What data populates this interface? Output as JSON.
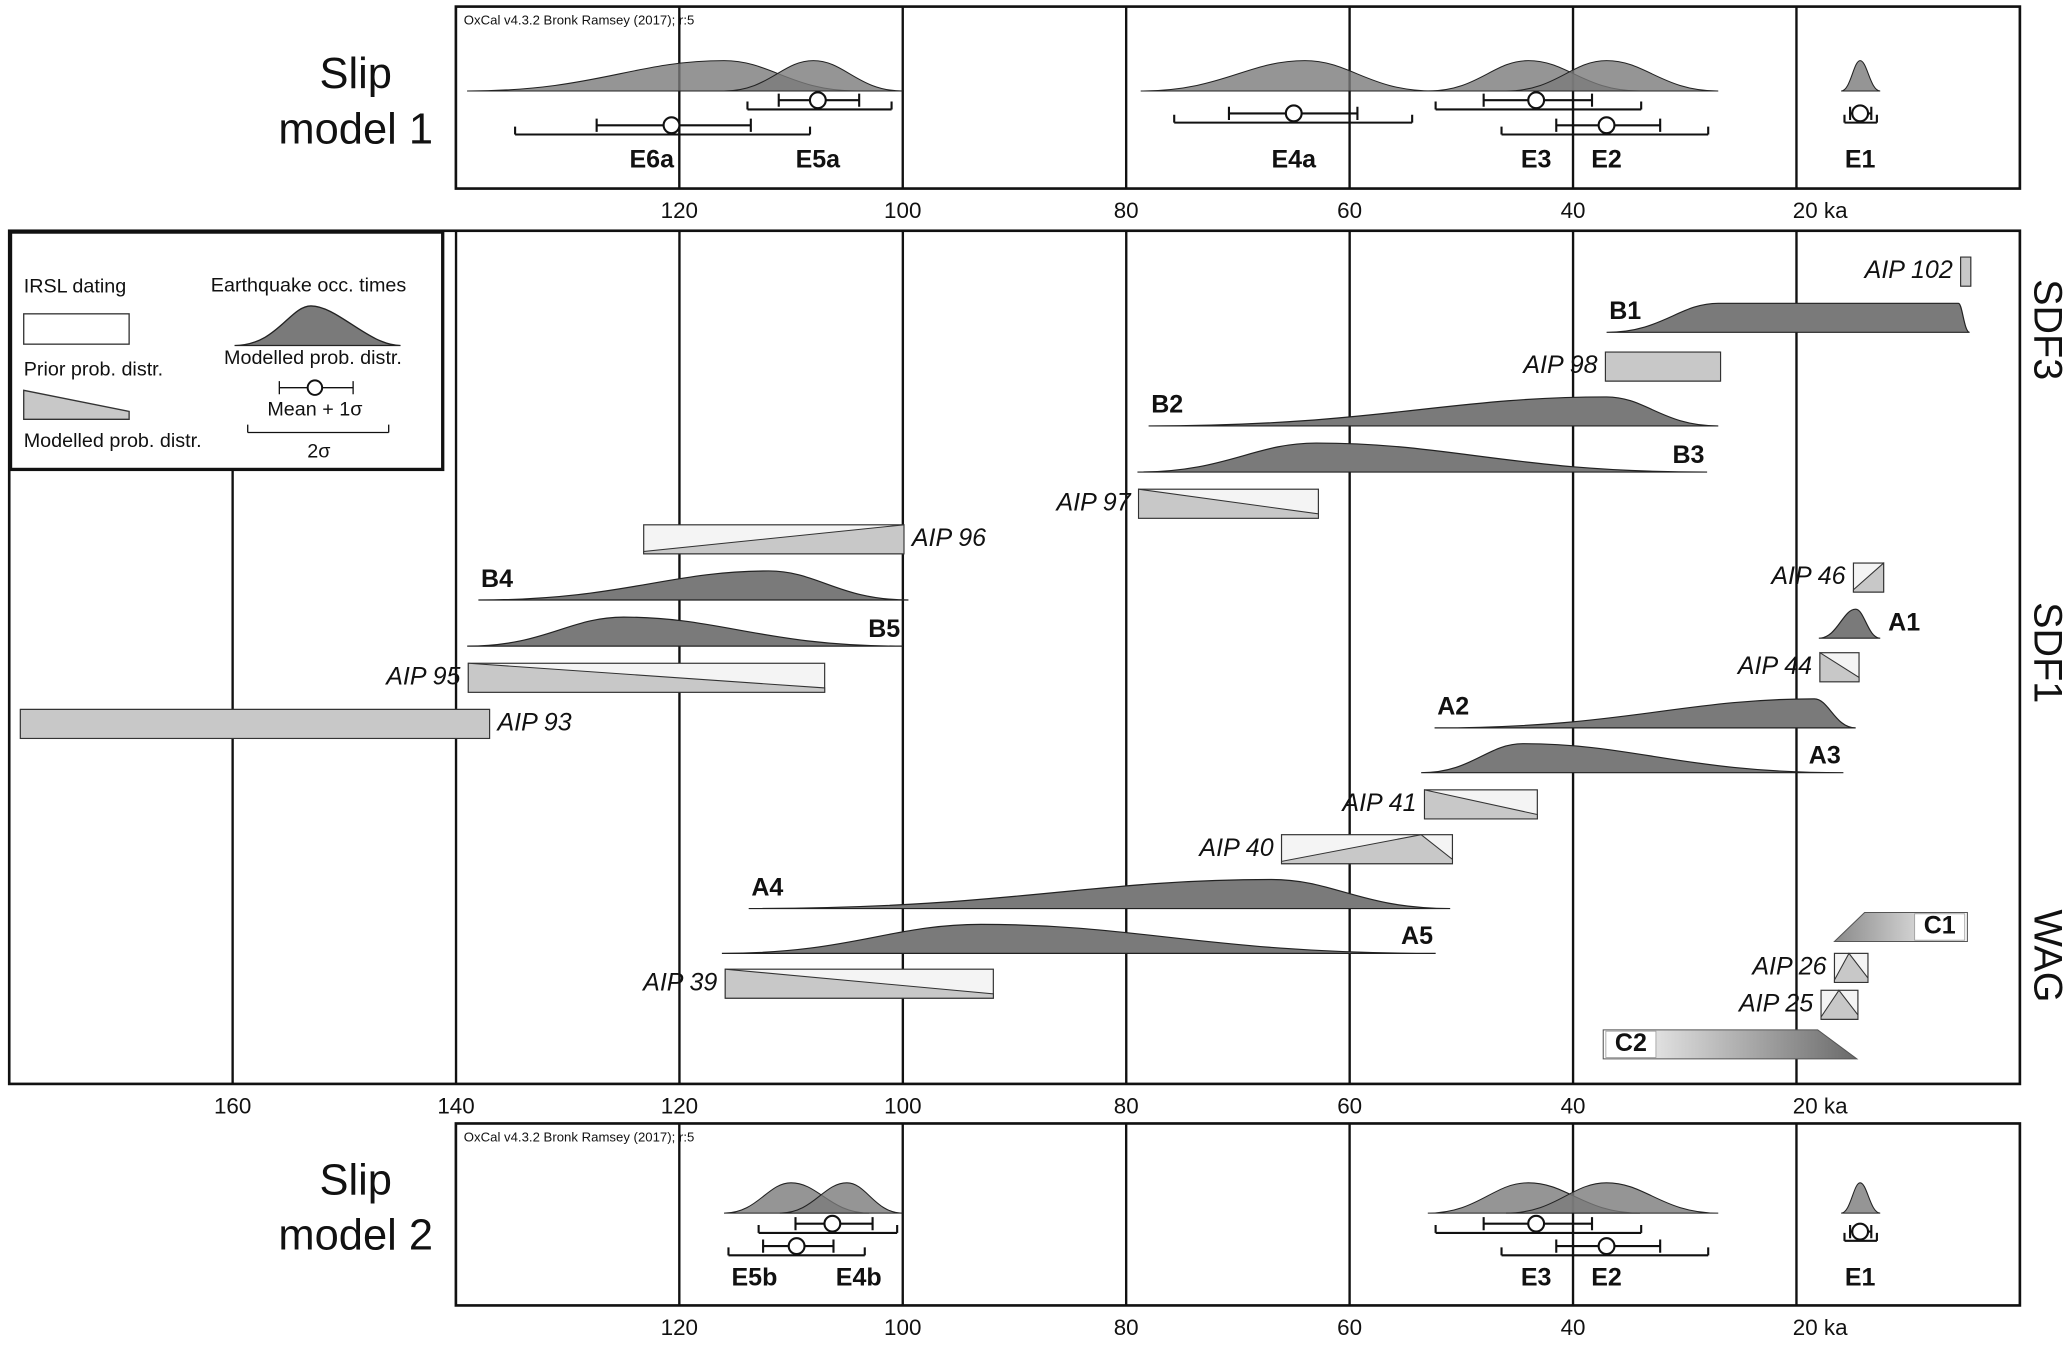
{
  "chart_data": [
    {
      "type": "slip",
      "title_lines": [
        "Slip",
        "model 1"
      ],
      "note": "OxCal v4.3.2 Bronk Ramsey (2017); r:5",
      "xlim": [
        140,
        0
      ],
      "xticks": [
        120,
        100,
        80,
        60,
        40,
        {
          "value": 20,
          "label": "20 ka"
        }
      ],
      "grid": true,
      "event_color": "#7a7a7a",
      "events": [
        {
          "name": "E6a",
          "from": 139,
          "peak": 116,
          "to": 104,
          "mean": 120.7,
          "sigma1": [
            127.4,
            113.6
          ],
          "sigma2": [
            134.7,
            108.3
          ]
        },
        {
          "name": "E5a",
          "from": 116,
          "peak": 108,
          "to": 100,
          "mean": 107.6,
          "sigma1": [
            111.1,
            103.9
          ],
          "sigma2": [
            113.9,
            101
          ]
        },
        {
          "name": "E4a",
          "from": 78.7,
          "peak": 64,
          "to": 52.5,
          "mean": 65,
          "sigma1": [
            70.8,
            59.3
          ],
          "sigma2": [
            75.7,
            54.4
          ]
        },
        {
          "name": "E3",
          "from": 53,
          "peak": 44,
          "to": 34,
          "mean": 43.3,
          "sigma1": [
            48,
            38.3
          ],
          "sigma2": [
            52.3,
            33.9
          ]
        },
        {
          "name": "E2",
          "from": 46,
          "peak": 37,
          "to": 27,
          "mean": 37,
          "sigma1": [
            41.5,
            32.2
          ],
          "sigma2": [
            46.4,
            27.9
          ]
        },
        {
          "name": "E1",
          "from": 16,
          "peak": 14.3,
          "to": 12.5,
          "mean": 14.3,
          "sigma1": [
            15.2,
            13.3
          ],
          "sigma2": [
            15.7,
            12.8
          ]
        }
      ]
    },
    {
      "type": "sequence",
      "note": "OxCal v4.3.2 Bronk Ramsey (2017); r:5",
      "xlim": [
        180,
        0
      ],
      "xticks": [
        160,
        140,
        120,
        100,
        80,
        60,
        40,
        {
          "value": 20,
          "label": "20 ka"
        }
      ],
      "grid": true,
      "event_color": "#7a7a7a",
      "prior_color": "#c8c8c8",
      "legend": [
        "IRSL dating",
        "Earthquake occ. times",
        "Prior prob. distr.",
        "Modelled prob. distr.",
        "Modelled prob. distr.",
        "Mean + 1σ",
        "2σ"
      ],
      "groups": [
        "SDF3",
        "SDF1",
        "WAG"
      ],
      "items": [
        {
          "name": "AIP 102",
          "kind": "prior",
          "from": 5.3,
          "peak": [
            5.3,
            4.4
          ],
          "to": 4.4
        },
        {
          "name": "B1",
          "kind": "event",
          "from": 37,
          "peak": [
            27,
            5.5
          ],
          "to": 4.5
        },
        {
          "name": "AIP 98",
          "kind": "prior",
          "from": 37.1,
          "peak": [
            37.1,
            26.8
          ],
          "to": 26.8
        },
        {
          "name": "B2",
          "kind": "event",
          "from": 78,
          "peak": 37,
          "to": 27
        },
        {
          "name": "B3",
          "kind": "event",
          "from": 79,
          "peak": 63,
          "to": 28
        },
        {
          "name": "AIP 97",
          "kind": "prior",
          "from": 78.9,
          "peak": 78.9,
          "to": 62.8
        },
        {
          "name": "AIP 96",
          "kind": "prior",
          "from": 123.2,
          "peak": 99.9,
          "to": 99.9
        },
        {
          "name": "B4",
          "kind": "event",
          "from": 138,
          "peak": 112,
          "to": 99.5
        },
        {
          "name": "B5",
          "kind": "event",
          "from": 139,
          "peak": 125,
          "to": 100
        },
        {
          "name": "AIP 95",
          "kind": "prior",
          "from": 138.9,
          "peak": 138.9,
          "to": 107
        },
        {
          "name": "AIP 93",
          "kind": "prior",
          "from": 179,
          "peak": [
            179,
            137
          ],
          "to": 137
        },
        {
          "name": "AIP 46",
          "kind": "prior",
          "from": 14.9,
          "peak": 12.2,
          "to": 12.2
        },
        {
          "name": "A1",
          "kind": "event",
          "from": 18,
          "peak": 14.7,
          "to": 12.5
        },
        {
          "name": "AIP 44",
          "kind": "prior",
          "from": 17.9,
          "peak": 17.9,
          "to": 14.4
        },
        {
          "name": "A2",
          "kind": "event",
          "from": 52.4,
          "peak": 18.4,
          "to": 14.7
        },
        {
          "name": "A3",
          "kind": "event",
          "from": 53.6,
          "peak": 44.5,
          "to": 15.8
        },
        {
          "name": "AIP 41",
          "kind": "prior",
          "from": 53.3,
          "peak": 53.3,
          "to": 43.2
        },
        {
          "name": "AIP 40",
          "kind": "prior",
          "from": 66.1,
          "peak": 53.6,
          "to": 50.8
        },
        {
          "name": "A4",
          "kind": "event",
          "from": 113.8,
          "peak": 67,
          "to": 51
        },
        {
          "name": "A5",
          "kind": "event",
          "from": 116.2,
          "peak": 93,
          "to": 52.3
        },
        {
          "name": "AIP 39",
          "kind": "prior",
          "from": 115.9,
          "peak": 115.9,
          "to": 91.9
        },
        {
          "name": "C1",
          "kind": "phase",
          "from": 16.6,
          "peak": [
            13.9,
            4.7
          ],
          "to": 4.7,
          "fade": "right"
        },
        {
          "name": "AIP 26",
          "kind": "prior",
          "from": 16.6,
          "peak": 15.3,
          "to": 13.6
        },
        {
          "name": "AIP 25",
          "kind": "prior",
          "from": 17.8,
          "peak": 16.2,
          "to": 14.5
        },
        {
          "name": "C2",
          "kind": "phase",
          "from": 37.3,
          "peak": [
            37.3,
            18.1
          ],
          "to": 14.6,
          "fade": "left"
        }
      ]
    },
    {
      "type": "slip",
      "title_lines": [
        "Slip",
        "model 2"
      ],
      "note": "OxCal v4.3.2 Bronk Ramsey (2017); r:5",
      "xlim": [
        140,
        0
      ],
      "xticks": [
        120,
        100,
        80,
        60,
        40,
        {
          "value": 20,
          "label": "20 ka"
        }
      ],
      "grid": true,
      "event_color": "#7a7a7a",
      "events": [
        {
          "name": "E5b",
          "from": 116,
          "peak": 110,
          "to": 103,
          "mean": 109.5,
          "sigma1": [
            112.5,
            106.2
          ],
          "sigma2": [
            115.6,
            103.4
          ]
        },
        {
          "name": "E4b",
          "from": 111,
          "peak": 105,
          "to": 100,
          "mean": 106.3,
          "sigma1": [
            109.6,
            102.7
          ],
          "sigma2": [
            112.9,
            100.5
          ]
        },
        {
          "name": "E3",
          "from": 53,
          "peak": 44,
          "to": 34,
          "mean": 43.3,
          "sigma1": [
            48,
            38.3
          ],
          "sigma2": [
            52.3,
            33.9
          ]
        },
        {
          "name": "E2",
          "from": 46,
          "peak": 37,
          "to": 27,
          "mean": 37,
          "sigma1": [
            41.5,
            32.2
          ],
          "sigma2": [
            46.4,
            27.9
          ]
        },
        {
          "name": "E1",
          "from": 16,
          "peak": 14.3,
          "to": 12.5,
          "mean": 14.3,
          "sigma1": [
            15.2,
            13.3
          ],
          "sigma2": [
            15.7,
            12.8
          ]
        }
      ]
    }
  ]
}
